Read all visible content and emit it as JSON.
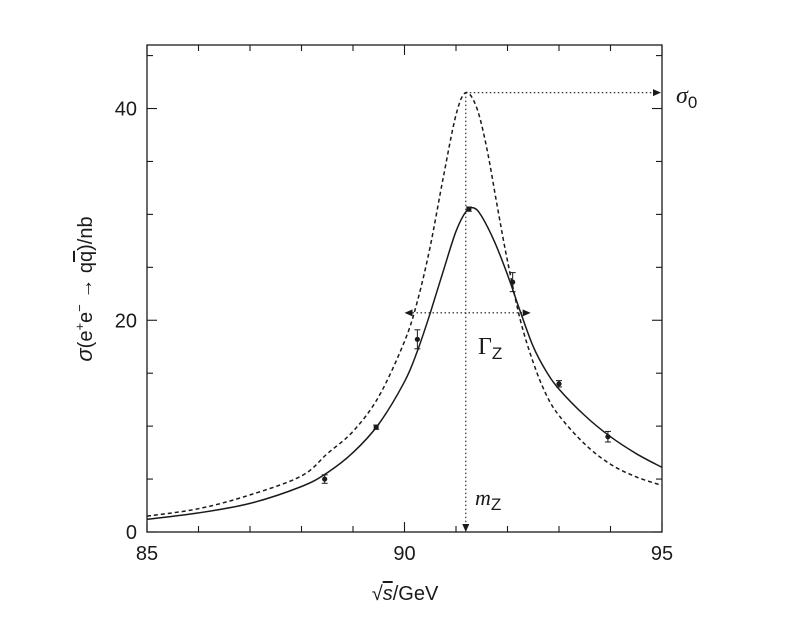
{
  "chart_data": {
    "type": "line",
    "xlabel_parts": {
      "root": "√",
      "var": "s",
      "unit": "/GeV"
    },
    "ylabel_parts": {
      "sigma": "σ",
      "open": "(e",
      "plus": "+",
      "mid": "e",
      "minus": "−",
      "arrow": " → q",
      "qbar": "q",
      "close": ")/nb"
    },
    "xlim": [
      85,
      95
    ],
    "ylim": [
      0,
      46
    ],
    "x_ticks": [
      85,
      90,
      95
    ],
    "y_ticks": [
      0,
      20,
      40
    ],
    "grid": false,
    "series": [
      {
        "style": "solid",
        "x": [
          85.0,
          86.0,
          87.0,
          88.0,
          88.5,
          89.0,
          89.5,
          90.0,
          90.25,
          90.5,
          90.75,
          91.0,
          91.2,
          91.35,
          91.5,
          91.75,
          92.0,
          92.25,
          92.5,
          92.75,
          93.0,
          93.5,
          94.0,
          94.5,
          95.0
        ],
        "y": [
          1.2,
          1.8,
          2.7,
          4.3,
          5.6,
          7.5,
          10.2,
          14.2,
          17.1,
          20.7,
          24.6,
          28.4,
          30.3,
          30.6,
          29.8,
          27.4,
          24.3,
          20.8,
          17.5,
          15.2,
          13.5,
          11.0,
          9.0,
          7.4,
          6.1
        ]
      },
      {
        "style": "dashed",
        "x": [
          85.0,
          86.0,
          87.0,
          88.0,
          88.5,
          89.0,
          89.5,
          90.0,
          90.25,
          90.5,
          90.75,
          91.0,
          91.19,
          91.4,
          91.6,
          91.8,
          92.0,
          92.25,
          92.5,
          92.75,
          93.0,
          93.5,
          94.0,
          94.5,
          95.0
        ],
        "y": [
          1.5,
          2.2,
          3.5,
          5.3,
          7.4,
          9.5,
          12.8,
          18.0,
          21.8,
          27.0,
          33.4,
          39.4,
          41.5,
          40.1,
          36.2,
          30.8,
          25.6,
          20.0,
          16.0,
          13.0,
          11.0,
          8.3,
          6.4,
          5.2,
          4.4
        ]
      }
    ],
    "data_points": [
      {
        "x": 88.45,
        "y": 5.0,
        "err": 0.4
      },
      {
        "x": 89.45,
        "y": 9.9,
        "err": 0.2
      },
      {
        "x": 90.25,
        "y": 18.2,
        "err": 0.9
      },
      {
        "x": 91.25,
        "y": 30.5,
        "err": 0.2
      },
      {
        "x": 92.1,
        "y": 23.6,
        "err": 0.9
      },
      {
        "x": 93.0,
        "y": 14.0,
        "err": 0.3
      },
      {
        "x": 93.95,
        "y": 9.0,
        "err": 0.5
      }
    ],
    "annotations": {
      "sigma0": {
        "symbol": "σ",
        "sub": "0",
        "peak_x": 91.19,
        "peak_y": 41.5,
        "arrow_to_x": 95
      },
      "gammaZ": {
        "symbol": "Γ",
        "sub": "Z",
        "x_from": 90.0,
        "x_to": 92.45,
        "y": 20.7
      },
      "mZ": {
        "symbol": "m",
        "sub": "Z",
        "x": 91.19,
        "y_from": 41.5,
        "y_to": 0
      }
    }
  }
}
